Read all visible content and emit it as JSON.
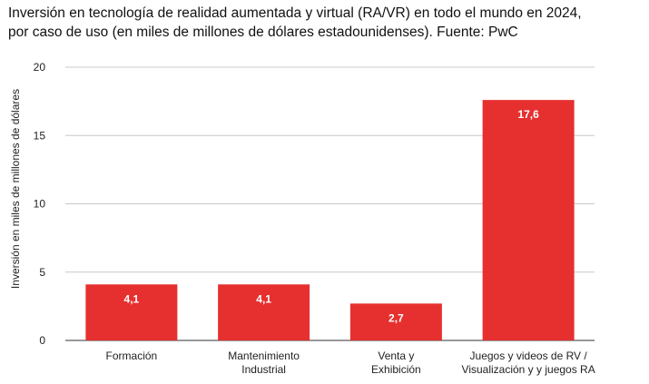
{
  "chart_data": {
    "type": "bar",
    "title_lines": [
      "Inversión en tecnología de realidad aumentada y virtual (RA/VR) en todo el mundo en 2024,",
      "por caso de uso (en miles de millones de dólares estadounidenses). Fuente: PwC"
    ],
    "categories": [
      [
        "Formación"
      ],
      [
        "Mantenimiento",
        "Industrial"
      ],
      [
        "Venta y",
        "Exhibición"
      ],
      [
        "Juegos y videos de RV /",
        "Visualización y y juegos RA"
      ]
    ],
    "values": [
      4.1,
      4.1,
      2.7,
      17.6
    ],
    "value_labels": [
      "4,1",
      "4,1",
      "2,7",
      "17,6"
    ],
    "ylabel": "Inversión en miles de millones de dólares",
    "xlabel": "",
    "ylim": [
      0,
      20
    ],
    "yticks": [
      0,
      5,
      10,
      15,
      20
    ],
    "grid": true,
    "bar_color": "#e63030",
    "grid_color": "#c8c8c8"
  }
}
